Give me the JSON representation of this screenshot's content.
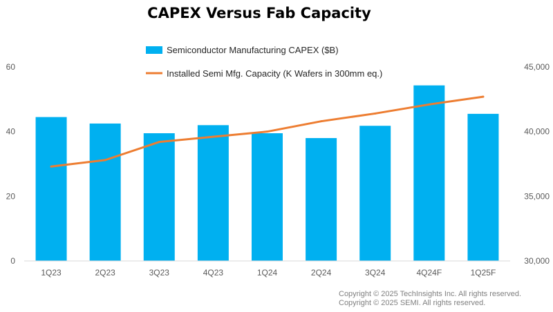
{
  "chart_data": {
    "type": "bar",
    "title": "CAPEX Versus Fab Capacity",
    "categories": [
      "1Q23",
      "2Q23",
      "3Q23",
      "4Q23",
      "1Q24",
      "2Q24",
      "3Q24",
      "4Q24F",
      "1Q25F"
    ],
    "series": [
      {
        "name": "Semiconductor Manufacturing CAPEX ($B)",
        "type": "bar",
        "axis": "left",
        "color": "#00b0f0",
        "values": [
          44.5,
          42.5,
          39.5,
          42,
          39.5,
          38,
          41.8,
          54.3,
          45.5
        ]
      },
      {
        "name": "Installed Semi Mfg. Capacity (K Wafers in 300mm eq.)",
        "type": "line",
        "axis": "right",
        "color": "#ed7d31",
        "values": [
          37300,
          37800,
          39200,
          39600,
          40000,
          40800,
          41400,
          42100,
          42700
        ]
      }
    ],
    "left_axis": {
      "min": 0,
      "max": 60,
      "ticks": [
        0,
        20,
        40,
        60
      ],
      "tick_labels": [
        "0",
        "20",
        "40",
        "60"
      ]
    },
    "right_axis": {
      "min": 30000,
      "max": 45000,
      "ticks": [
        30000,
        35000,
        40000,
        45000
      ],
      "tick_labels": [
        "30,000",
        "35,000",
        "40,000",
        "45,000"
      ]
    },
    "xlabel": "",
    "ylabel": "",
    "grid": false,
    "legend_position": "top-center"
  },
  "copyright": {
    "line1": "Copyright © 2025 TechInsights Inc.  All rights reserved.",
    "line2": "Copyright © 2025 SEMI.  All rights reserved."
  }
}
